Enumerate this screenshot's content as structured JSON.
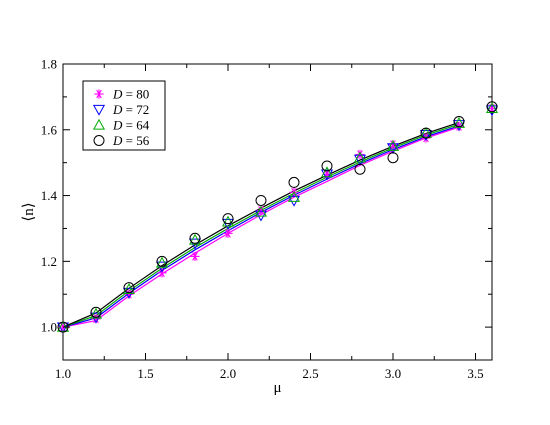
{
  "chart_data": {
    "type": "scatter",
    "xlabel": "μ",
    "ylabel": "⟨n⟩",
    "xlim": [
      1.0,
      3.6
    ],
    "ylim": [
      0.9,
      1.8
    ],
    "xticks": [
      "1.0",
      "1.5",
      "2.0",
      "2.5",
      "3.0",
      "3.5"
    ],
    "xtick_values": [
      1.0,
      1.5,
      2.0,
      2.5,
      3.0,
      3.5
    ],
    "yticks": [
      "1.0",
      "1.2",
      "1.4",
      "1.6",
      "1.8"
    ],
    "ytick_values": [
      1.0,
      1.2,
      1.4,
      1.6,
      1.8
    ],
    "grid": false,
    "legend_position": "top-left",
    "series": [
      {
        "name": "D = 80",
        "label_var": "D",
        "label_value": "= 80",
        "color": "#ff00ff",
        "marker": "asterisk",
        "x": [
          1.0,
          1.2,
          1.4,
          1.6,
          1.8,
          2.0,
          2.2,
          2.4,
          2.6,
          2.8,
          3.0,
          3.2,
          3.4,
          3.6
        ],
        "y": [
          1.0,
          1.025,
          1.1,
          1.165,
          1.215,
          1.285,
          1.355,
          1.41,
          1.465,
          1.525,
          1.555,
          1.575,
          1.61,
          1.665
        ],
        "fit": [
          1.0,
          1.02,
          1.095,
          1.162,
          1.225,
          1.285,
          1.342,
          1.395,
          1.443,
          1.492,
          1.535,
          1.575,
          1.608
        ]
      },
      {
        "name": "D = 72",
        "label_var": "D",
        "label_value": "= 72",
        "color": "#0000ff",
        "marker": "triangle-down",
        "x": [
          1.0,
          1.2,
          1.4,
          1.6,
          1.8,
          2.0,
          2.2,
          2.4,
          2.6,
          2.8,
          3.0,
          3.2,
          3.4,
          3.6
        ],
        "y": [
          1.0,
          1.03,
          1.105,
          1.185,
          1.255,
          1.315,
          1.34,
          1.385,
          1.465,
          1.51,
          1.545,
          1.585,
          1.615,
          1.66
        ],
        "fit": [
          1.0,
          1.028,
          1.103,
          1.172,
          1.235,
          1.293,
          1.349,
          1.401,
          1.45,
          1.497,
          1.54,
          1.579,
          1.612
        ]
      },
      {
        "name": "D = 64",
        "label_var": "D",
        "label_value": "= 64",
        "color": "#00aa00",
        "marker": "triangle-up",
        "x": [
          1.0,
          1.2,
          1.4,
          1.6,
          1.8,
          2.0,
          2.2,
          2.4,
          2.6,
          2.8,
          3.0,
          3.2,
          3.4,
          3.6
        ],
        "y": [
          1.0,
          1.04,
          1.115,
          1.195,
          1.265,
          1.32,
          1.35,
          1.395,
          1.47,
          1.515,
          1.55,
          1.59,
          1.62,
          1.665
        ],
        "fit": [
          1.0,
          1.035,
          1.11,
          1.179,
          1.242,
          1.3,
          1.355,
          1.407,
          1.456,
          1.502,
          1.545,
          1.584,
          1.617
        ]
      },
      {
        "name": "D = 56",
        "label_var": "D",
        "label_value": "= 56",
        "color": "#000000",
        "marker": "circle",
        "x": [
          1.0,
          1.2,
          1.4,
          1.6,
          1.8,
          2.0,
          2.2,
          2.4,
          2.6,
          2.8,
          3.0,
          3.2,
          3.4,
          3.6
        ],
        "y": [
          1.0,
          1.045,
          1.12,
          1.2,
          1.27,
          1.33,
          1.385,
          1.44,
          1.49,
          1.48,
          1.515,
          1.59,
          1.625,
          1.67
        ],
        "fit": [
          1.0,
          1.043,
          1.118,
          1.187,
          1.25,
          1.308,
          1.362,
          1.414,
          1.462,
          1.508,
          1.55,
          1.589,
          1.622
        ]
      }
    ]
  }
}
